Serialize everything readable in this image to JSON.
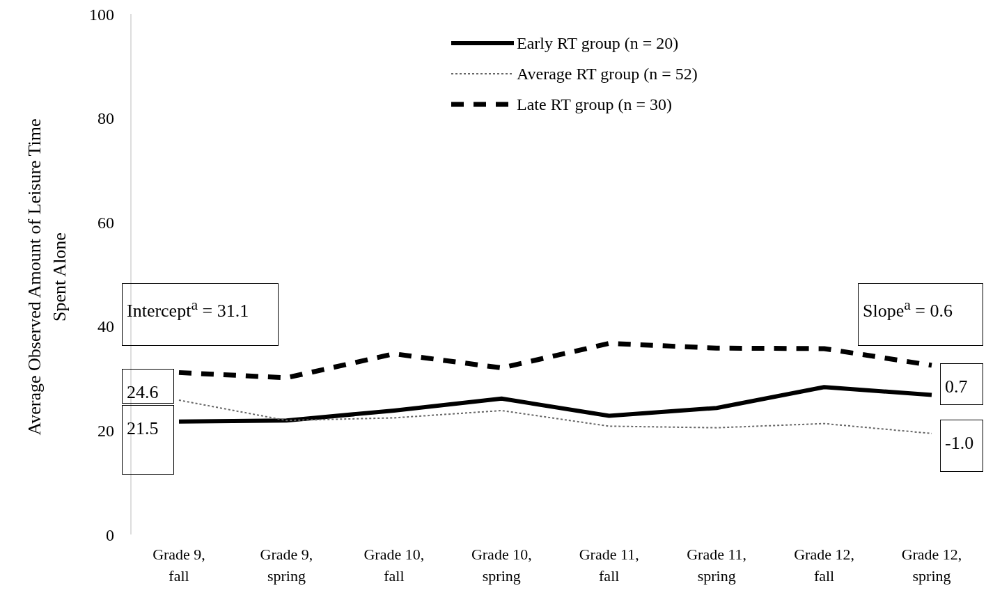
{
  "chart_data": {
    "type": "line",
    "ylabel": "Average Observed Amount of Leisure Time Spent Alone",
    "categories": [
      "Grade 9, fall",
      "Grade 9, spring",
      "Grade 10, fall",
      "Grade 10, spring",
      "Grade 11, fall",
      "Grade 11, spring",
      "Grade 12, fall",
      "Grade 12, spring"
    ],
    "series": [
      {
        "name": "Early RT group (n = 20)",
        "color": "#000000",
        "line_style": "solid",
        "values": [
          21.7,
          21.9,
          23.8,
          26.1,
          22.8,
          24.3,
          28.3,
          26.8
        ]
      },
      {
        "name": "Average RT group (n = 52)",
        "color": "#666666",
        "line_style": "dotted",
        "values": [
          25.8,
          21.9,
          22.4,
          23.8,
          20.8,
          20.5,
          21.3,
          19.4
        ]
      },
      {
        "name": "Late RT group (n = 30)",
        "color": "#000000",
        "line_style": "dashed",
        "values": [
          31.1,
          30.1,
          34.7,
          32.0,
          36.7,
          35.8,
          35.7,
          32.5
        ]
      }
    ],
    "ylim": [
      0,
      100
    ],
    "yticks": [
      0,
      20,
      40,
      60,
      80,
      100
    ],
    "grid": false,
    "legend": "top",
    "marker": "none",
    "annotations": [
      "Intercept$^{a}$ = 31.1",
      "24.6",
      "21.5",
      "Slope$^{a}$ = 0.6",
      "0.7",
      "-1.0"
    ]
  }
}
